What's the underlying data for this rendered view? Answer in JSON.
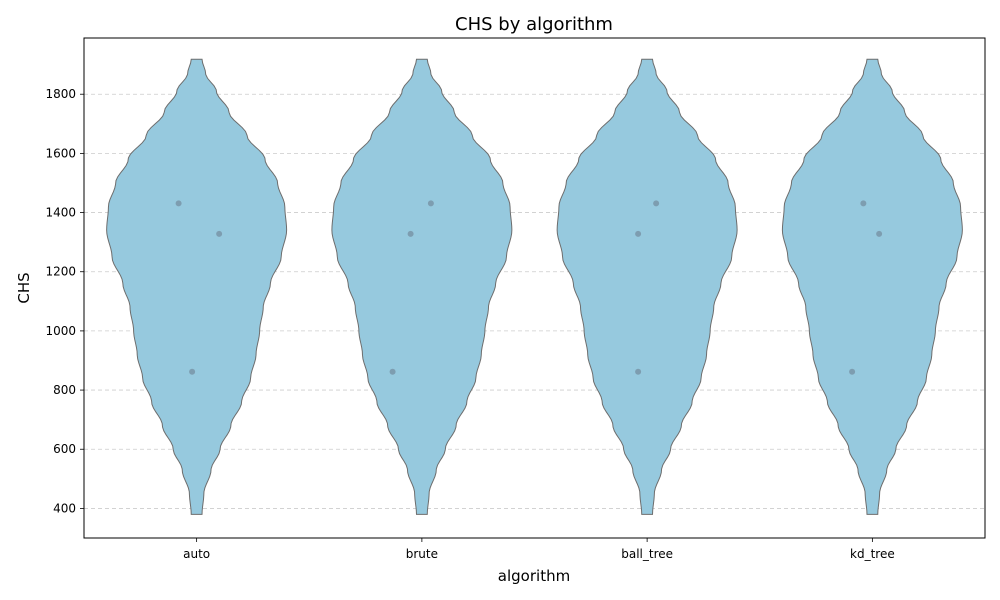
{
  "chart_data": {
    "type": "violin",
    "title": "CHS by algorithm",
    "xlabel": "algorithm",
    "ylabel": "CHS",
    "categories": [
      "auto",
      "brute",
      "ball_tree",
      "kd_tree"
    ],
    "ylim": [
      300,
      1990
    ],
    "yticks": [
      400,
      600,
      800,
      1000,
      1200,
      1400,
      1600,
      1800
    ],
    "grid": "y-dashed",
    "colors": {
      "violin_fill": "#96c9de",
      "violin_edge": "#6d6d6d",
      "point": "#7d9db0",
      "grid": "#cccccc"
    },
    "violin_range": [
      380,
      1918
    ],
    "density_profile": [
      [
        380,
        0.06
      ],
      [
        450,
        0.08
      ],
      [
        530,
        0.16
      ],
      [
        600,
        0.26
      ],
      [
        680,
        0.38
      ],
      [
        760,
        0.5
      ],
      [
        840,
        0.6
      ],
      [
        920,
        0.66
      ],
      [
        1000,
        0.7
      ],
      [
        1080,
        0.74
      ],
      [
        1160,
        0.82
      ],
      [
        1250,
        0.94
      ],
      [
        1340,
        1.0
      ],
      [
        1420,
        0.98
      ],
      [
        1500,
        0.9
      ],
      [
        1580,
        0.76
      ],
      [
        1660,
        0.56
      ],
      [
        1740,
        0.36
      ],
      [
        1810,
        0.22
      ],
      [
        1870,
        0.1
      ],
      [
        1918,
        0.06
      ]
    ],
    "series": [
      {
        "category": "auto",
        "points": [
          [
            -0.08,
            1431
          ],
          [
            0.1,
            1328
          ],
          [
            -0.02,
            862
          ]
        ]
      },
      {
        "category": "brute",
        "points": [
          [
            0.04,
            1431
          ],
          [
            -0.05,
            1328
          ],
          [
            -0.13,
            862
          ]
        ]
      },
      {
        "category": "ball_tree",
        "points": [
          [
            0.04,
            1431
          ],
          [
            -0.04,
            1328
          ],
          [
            -0.04,
            862
          ]
        ]
      },
      {
        "category": "kd_tree",
        "points": [
          [
            -0.04,
            1431
          ],
          [
            0.03,
            1328
          ],
          [
            -0.09,
            862
          ]
        ]
      }
    ]
  }
}
